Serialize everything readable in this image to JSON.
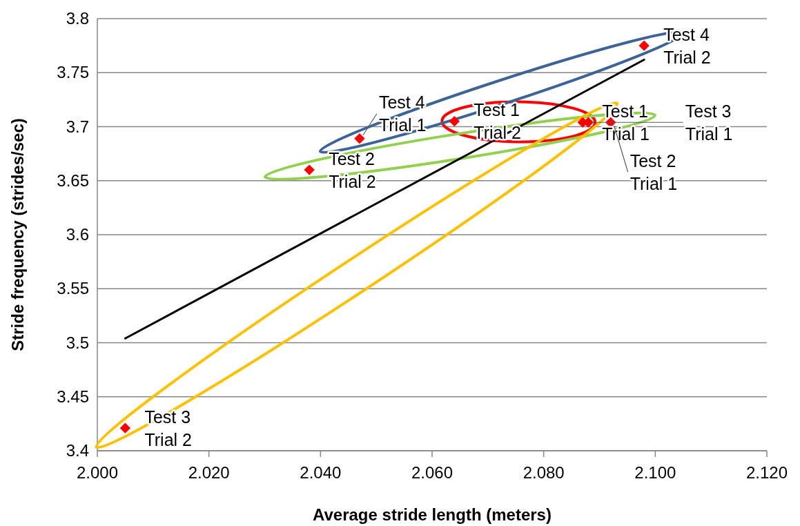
{
  "chart_data": {
    "type": "scatter",
    "xlabel": "Average stride length (meters)",
    "ylabel": "Stride frequency (strides/sec)",
    "xlim": [
      2.0,
      2.12
    ],
    "xticks": [
      {
        "value": 2.0,
        "label": "2.000"
      },
      {
        "value": 2.02,
        "label": "2.020"
      },
      {
        "value": 2.04,
        "label": "2.040"
      },
      {
        "value": 2.06,
        "label": "2.060"
      },
      {
        "value": 2.08,
        "label": "2.080"
      },
      {
        "value": 2.1,
        "label": "2.100"
      },
      {
        "value": 2.12,
        "label": "2.120"
      }
    ],
    "ylim": [
      3.4,
      3.8
    ],
    "yticks": [
      3.4,
      3.45,
      3.5,
      3.55,
      3.6,
      3.65,
      3.7,
      3.75,
      3.8
    ],
    "grid": "y",
    "series": [
      {
        "type": "scatter",
        "color": "#ff0000",
        "marker": "diamond",
        "x": [
          2.087,
          2.064,
          2.092,
          2.038,
          2.088,
          2.005,
          2.047,
          2.098
        ],
        "values": [
          3.704,
          3.705,
          3.704,
          3.66,
          3.704,
          3.421,
          3.689,
          3.775
        ]
      },
      {
        "type": "line",
        "color": "#000000",
        "marker": "none",
        "x": [
          2.005,
          2.098
        ],
        "values": [
          3.504,
          3.762
        ]
      }
    ],
    "annotations": [
      {
        "text": "Test 1\nTrial 1",
        "x": 2.087,
        "y": 3.704
      },
      {
        "text": "Test 1\nTrial 2",
        "x": 2.064,
        "y": 3.705
      },
      {
        "text": "Test 2\nTrial 1",
        "x": 2.092,
        "y": 3.704
      },
      {
        "text": "Test 2\nTrial 2",
        "x": 2.038,
        "y": 3.66
      },
      {
        "text": "Test 3\nTrial 1",
        "x": 2.088,
        "y": 3.704
      },
      {
        "text": "Test 3\nTrial 2",
        "x": 2.005,
        "y": 3.421
      },
      {
        "text": "Test 4\nTrial 1",
        "x": 2.047,
        "y": 3.689
      },
      {
        "text": "Test 4\nTrial 2",
        "x": 2.098,
        "y": 3.775
      }
    ]
  }
}
